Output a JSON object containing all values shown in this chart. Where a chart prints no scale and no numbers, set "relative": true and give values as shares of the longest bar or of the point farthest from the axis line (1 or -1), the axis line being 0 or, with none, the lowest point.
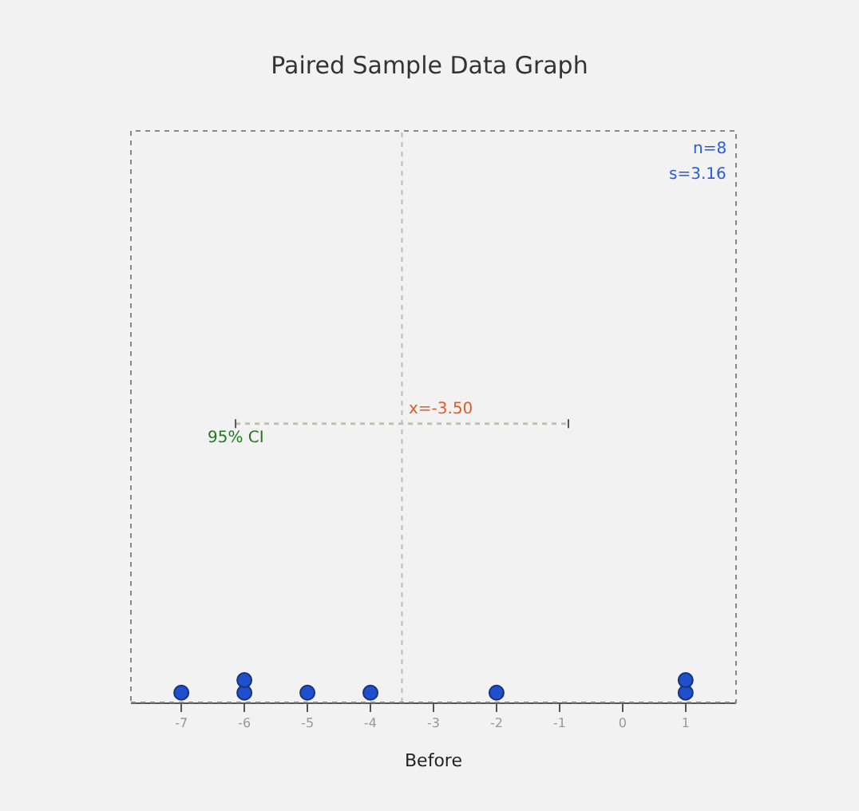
{
  "chart_data": {
    "type": "scatter",
    "title": "Paired Sample Data Graph",
    "xlabel": "Before",
    "relative": true,
    "xlim": [
      -7.8,
      1.8
    ],
    "xticks": [
      -7,
      -6,
      -5,
      -4,
      -3,
      -2,
      -1,
      0,
      1
    ],
    "series": [
      {
        "color": "#1f4fcc",
        "marker": "circle",
        "x": [
          -7,
          -6,
          -6,
          -5,
          -4,
          -2,
          1,
          1
        ],
        "values": [
          0.035,
          0.035,
          0.08,
          0.035,
          0.035,
          0.035,
          0.035,
          0.08
        ]
      },
      {
        "type": "line",
        "color": "#bfc4a8",
        "line_style": "dotted",
        "x": [
          -6.14,
          -0.86
        ],
        "values": [
          1,
          1
        ]
      }
    ],
    "ref_lines": [
      {
        "axis": "x",
        "value": -3.5,
        "color": "#bdbdbd",
        "line_style": "dotted"
      }
    ],
    "annotations": [
      {
        "text": "x=-3.50",
        "x": -3.5,
        "y": 1
      },
      {
        "text": "95% CI",
        "x": -6.14,
        "y": 1
      },
      "n=8",
      "s=3.16"
    ],
    "grid": false,
    "legend": false
  }
}
